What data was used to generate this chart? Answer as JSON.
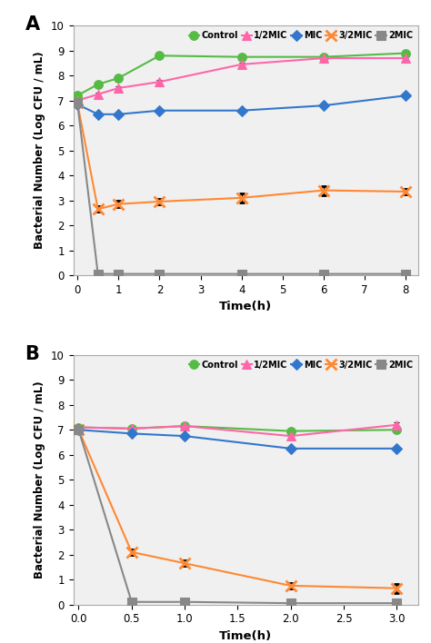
{
  "panel_A": {
    "label": "A",
    "x_ticks": [
      0,
      1,
      2,
      3,
      4,
      5,
      6,
      7,
      8
    ],
    "xlim": [
      -0.1,
      8.3
    ],
    "ylim": [
      0,
      10
    ],
    "y_ticks": [
      0,
      1,
      2,
      3,
      4,
      5,
      6,
      7,
      8,
      9,
      10
    ],
    "xlabel": "Time(h)",
    "ylabel": "Bacterial Number (Log CFU / mL)",
    "series": [
      {
        "label": "Control",
        "color": "#55bb44",
        "marker": "o",
        "linestyle": "-",
        "x": [
          0,
          0.5,
          1,
          2,
          4,
          6,
          8
        ],
        "y": [
          7.2,
          7.65,
          7.9,
          8.8,
          8.75,
          8.75,
          8.9
        ],
        "yerr": [
          0.05,
          0.08,
          0.08,
          0.08,
          0.08,
          0.08,
          0.05
        ]
      },
      {
        "label": "1/2MIC",
        "color": "#ff66aa",
        "marker": "^",
        "linestyle": "-",
        "x": [
          0,
          0.5,
          1,
          2,
          4,
          6,
          8
        ],
        "y": [
          7.0,
          7.25,
          7.5,
          7.75,
          8.45,
          8.7,
          8.7
        ],
        "yerr": [
          0.05,
          0.08,
          0.08,
          0.08,
          0.08,
          0.08,
          0.08
        ]
      },
      {
        "label": "MIC",
        "color": "#3377cc",
        "marker": "D",
        "linestyle": "-",
        "x": [
          0,
          0.5,
          1,
          2,
          4,
          6,
          8
        ],
        "y": [
          6.85,
          6.45,
          6.45,
          6.6,
          6.6,
          6.8,
          7.2
        ],
        "yerr": [
          0.05,
          0.08,
          0.08,
          0.08,
          0.08,
          0.08,
          0.08
        ]
      },
      {
        "label": "3/2MIC",
        "color": "#ff8833",
        "marker": "x",
        "linestyle": "-",
        "x": [
          0,
          0.5,
          1,
          2,
          4,
          6,
          8
        ],
        "y": [
          6.9,
          2.65,
          2.85,
          2.95,
          3.1,
          3.4,
          3.35
        ],
        "yerr": [
          0.05,
          0.12,
          0.12,
          0.12,
          0.18,
          0.18,
          0.12
        ]
      },
      {
        "label": "2MIC",
        "color": "#888888",
        "marker": "s",
        "linestyle": "-",
        "x": [
          0,
          0.5,
          1,
          2,
          4,
          6,
          8
        ],
        "y": [
          6.9,
          0.05,
          0.05,
          0.05,
          0.05,
          0.05,
          0.05
        ],
        "yerr": [
          0.05,
          0.02,
          0.02,
          0.02,
          0.02,
          0.02,
          0.02
        ]
      }
    ]
  },
  "panel_B": {
    "label": "B",
    "x_ticks": [
      0,
      0.5,
      1,
      1.5,
      2,
      2.5,
      3
    ],
    "xlim": [
      -0.05,
      3.2
    ],
    "ylim": [
      0,
      10
    ],
    "y_ticks": [
      0,
      1,
      2,
      3,
      4,
      5,
      6,
      7,
      8,
      9,
      10
    ],
    "xlabel": "Time(h)",
    "ylabel": "Bacterial Number (Log CFU / mL)",
    "series": [
      {
        "label": "Control",
        "color": "#55bb44",
        "marker": "o",
        "linestyle": "-",
        "x": [
          0,
          0.5,
          1,
          2,
          3
        ],
        "y": [
          7.1,
          7.05,
          7.15,
          6.95,
          7.0
        ],
        "yerr": [
          0.05,
          0.05,
          0.08,
          0.05,
          0.05
        ]
      },
      {
        "label": "1/2MIC",
        "color": "#ff66aa",
        "marker": "^",
        "linestyle": "-",
        "x": [
          0,
          0.5,
          1,
          2,
          3
        ],
        "y": [
          7.1,
          7.05,
          7.15,
          6.75,
          7.2
        ],
        "yerr": [
          0.05,
          0.05,
          0.1,
          0.1,
          0.1
        ]
      },
      {
        "label": "MIC",
        "color": "#3377cc",
        "marker": "D",
        "linestyle": "-",
        "x": [
          0,
          0.5,
          1,
          2,
          3
        ],
        "y": [
          7.0,
          6.85,
          6.75,
          6.25,
          6.25
        ],
        "yerr": [
          0.05,
          0.05,
          0.05,
          0.05,
          0.05
        ]
      },
      {
        "label": "3/2MIC",
        "color": "#ff8833",
        "marker": "x",
        "linestyle": "-",
        "x": [
          0,
          0.5,
          1,
          2,
          3
        ],
        "y": [
          7.0,
          2.1,
          1.65,
          0.75,
          0.65
        ],
        "yerr": [
          0.05,
          0.12,
          0.12,
          0.1,
          0.18
        ]
      },
      {
        "label": "2MIC",
        "color": "#888888",
        "marker": "s",
        "linestyle": "-",
        "x": [
          0,
          0.5,
          1,
          2,
          3
        ],
        "y": [
          7.0,
          0.1,
          0.1,
          0.05,
          0.05
        ],
        "yerr": [
          0.05,
          0.02,
          0.02,
          0.02,
          0.02
        ]
      }
    ]
  }
}
